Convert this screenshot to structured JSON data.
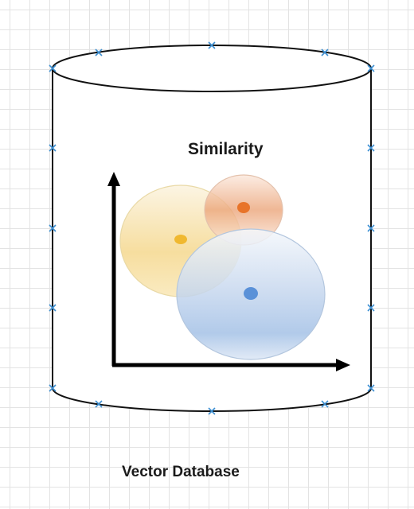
{
  "diagram": {
    "title": "Similarity",
    "label": "Vector Database"
  },
  "colors": {
    "background": "#ffffff",
    "grid": "#e3e3e3",
    "outline": "#111111",
    "axis": "#000000",
    "handle": "#3d8fd1",
    "cluster_yellow": "#f2c84b",
    "cluster_orange": "#e8874a",
    "cluster_blue": "#5b93d6"
  },
  "clusters": [
    {
      "name": "yellow",
      "color": "#f2c84b",
      "center_color": "#f0b830"
    },
    {
      "name": "orange",
      "color": "#e8874a",
      "center_color": "#e8742a"
    },
    {
      "name": "blue",
      "color": "#5b93d6",
      "center_color": "#5a91d8"
    }
  ],
  "icons": {
    "handle": "x-marker-icon",
    "axis_arrow": "arrow-head-icon"
  }
}
